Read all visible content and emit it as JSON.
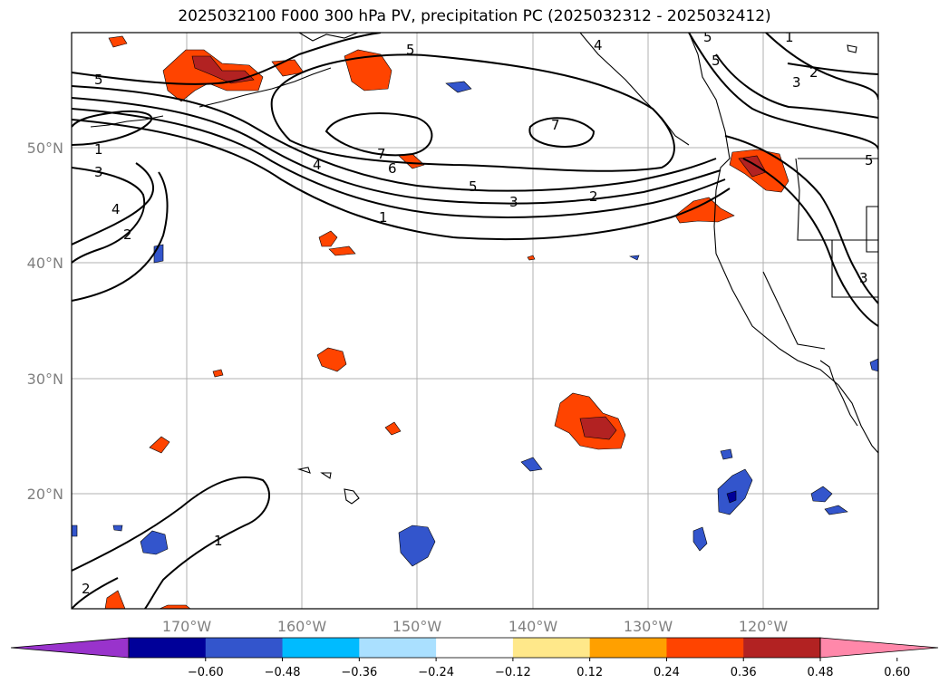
{
  "title": "2025032100 F000 300 hPa PV, precipitation PC (2025032312 - 2025032412)",
  "map": {
    "lat_labels": [
      "50°N",
      "40°N",
      "30°N",
      "20°N"
    ],
    "lon_labels": [
      "170°W",
      "160°W",
      "150°W",
      "140°W",
      "130°W",
      "120°W"
    ],
    "pv_contour_levels": [
      "1",
      "2",
      "3",
      "4",
      "5",
      "6",
      "7"
    ],
    "contour_label_samples": [
      "5",
      "1",
      "3",
      "4",
      "2",
      "7",
      "6",
      "5",
      "3",
      "2",
      "1",
      "7",
      "1",
      "2",
      "3",
      "5",
      "3",
      "1",
      "2"
    ]
  },
  "colorbar": {
    "tick_labels": [
      "−0.60",
      "−0.48",
      "−0.36",
      "−0.24",
      "−0.12",
      "0.12",
      "0.24",
      "0.36",
      "0.48",
      "0.60"
    ],
    "colors": [
      "#9933cc",
      "#000099",
      "#3355cc",
      "#00bbff",
      "#aae0ff",
      "#ffffff",
      "#ffe88a",
      "#ffa000",
      "#ff4400",
      "#b22222",
      "#ff88aa"
    ]
  }
}
